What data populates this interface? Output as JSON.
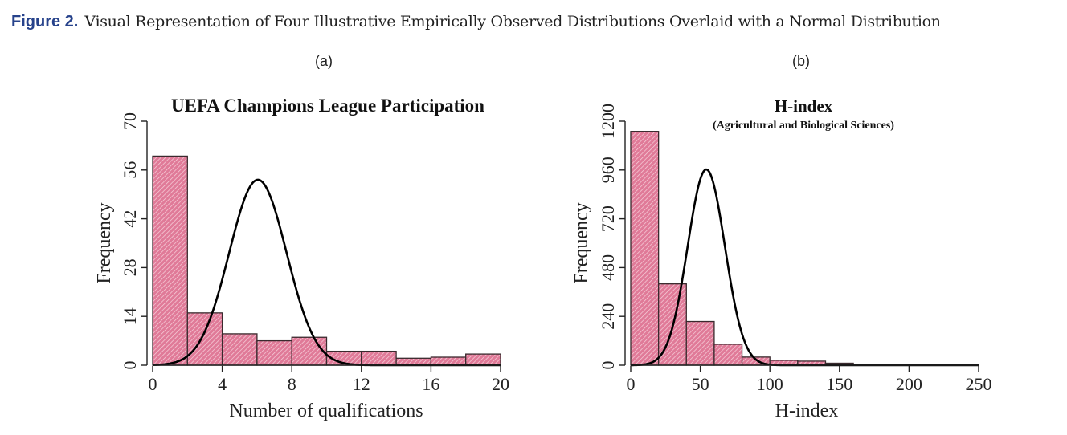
{
  "figure": {
    "label": "Figure 2.",
    "caption": "Visual Representation of Four Illustrative Empirically Observed Distributions Overlaid with a Normal Distribution"
  },
  "colors": {
    "bar_fill": "#e07a98",
    "bar_hatch": "#f7d3dd",
    "bar_stroke": "#3a2a2e",
    "curve": "#000000",
    "axis": "#222222",
    "caption_label": "#26428b"
  },
  "chart_data": [
    {
      "panel_label": "(a)",
      "type": "bar",
      "title": "UEFA Champions League Participation",
      "subtitle": "",
      "xlabel": "Number of qualifications",
      "ylabel": "Frequency",
      "xlim": [
        0,
        20
      ],
      "ylim": [
        0,
        70
      ],
      "xticks": [
        0,
        4,
        8,
        12,
        16,
        20
      ],
      "xtick_labels": [
        "0",
        "4",
        "8",
        "12",
        "16",
        "20"
      ],
      "yticks": [
        0,
        14,
        28,
        42,
        56,
        70
      ],
      "ytick_labels": [
        "0",
        "14",
        "28",
        "42",
        "56",
        "70"
      ],
      "bins": [
        [
          0,
          2
        ],
        [
          2,
          4
        ],
        [
          4,
          6
        ],
        [
          6,
          8
        ],
        [
          8,
          10
        ],
        [
          10,
          12
        ],
        [
          12,
          14
        ],
        [
          14,
          16
        ],
        [
          16,
          18
        ],
        [
          18,
          20
        ]
      ],
      "values": [
        60,
        15,
        9,
        7,
        8,
        4,
        4,
        2,
        2.3,
        3.2
      ],
      "normal_curve": {
        "mean": 6.05,
        "sd": 1.65,
        "peak": 53.2
      },
      "grid": false
    },
    {
      "panel_label": "(b)",
      "type": "bar",
      "title": "H-index",
      "subtitle": "(Agricultural and Biological Sciences)",
      "xlabel": "H-index",
      "ylabel": "Frequency",
      "xlim": [
        0,
        250
      ],
      "ylim": [
        0,
        1200
      ],
      "xticks": [
        0,
        50,
        100,
        150,
        200,
        250
      ],
      "xtick_labels": [
        "0",
        "50",
        "100",
        "150",
        "200",
        "250"
      ],
      "yticks": [
        0,
        240,
        480,
        720,
        960,
        1200
      ],
      "ytick_labels": [
        "0",
        "240",
        "480",
        "720",
        "960",
        "1200"
      ],
      "bins": [
        [
          0,
          20
        ],
        [
          20,
          40
        ],
        [
          40,
          60
        ],
        [
          60,
          80
        ],
        [
          80,
          100
        ],
        [
          100,
          120
        ],
        [
          120,
          140
        ],
        [
          140,
          160
        ],
        [
          160,
          180
        ],
        [
          180,
          200
        ],
        [
          200,
          220
        ],
        [
          220,
          240
        ],
        [
          240,
          250
        ]
      ],
      "values": [
        1150,
        400,
        215,
        103,
        40,
        24,
        20,
        10,
        3,
        1,
        0,
        0,
        0
      ],
      "normal_curve": {
        "mean": 54.3,
        "sd": 13.4,
        "peak": 963
      },
      "grid": false
    }
  ]
}
